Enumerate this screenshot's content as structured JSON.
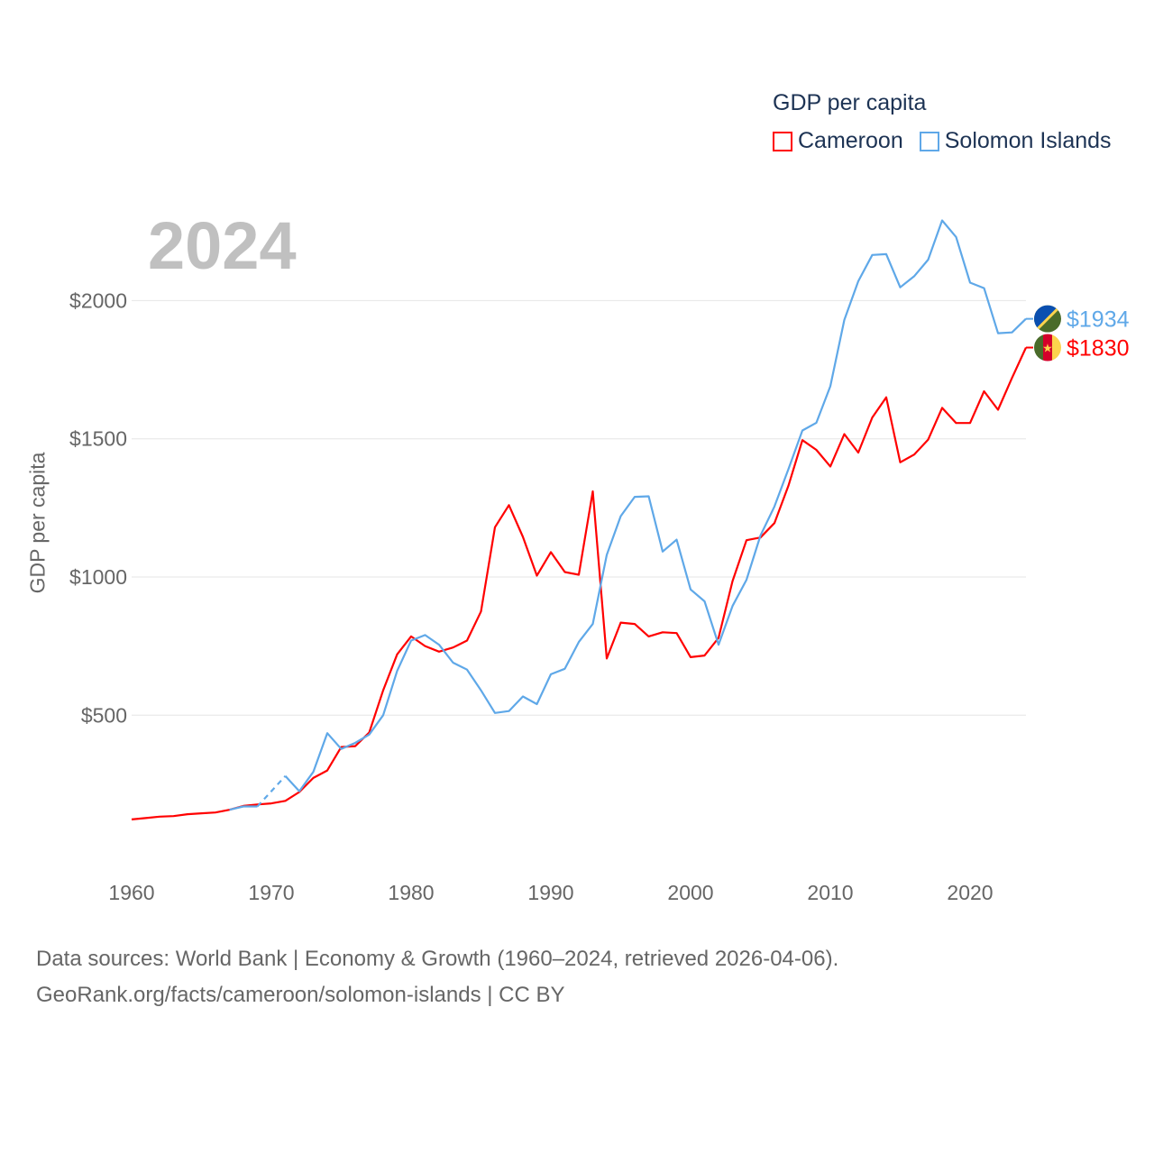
{
  "chart_data": {
    "type": "line",
    "title": "GDP per capita",
    "current_year_label": "2024",
    "xlabel": "",
    "ylabel": "GDP per capita",
    "xlim": [
      1960,
      2024
    ],
    "ylim": [
      0,
      2400
    ],
    "x_ticks": [
      1960,
      1970,
      1980,
      1990,
      2000,
      2010,
      2020
    ],
    "y_ticks": [
      500,
      1000,
      1500,
      2000
    ],
    "y_tick_labels": [
      "$500",
      "$1000",
      "$1500",
      "$2000"
    ],
    "grid": true,
    "legend_position": "top-right",
    "series": [
      {
        "name": "Cameroon",
        "color": "#ff0000",
        "end_label": "$1830",
        "flag": "cameroon-flag",
        "start_year": 1960,
        "values": [
          123,
          128,
          133,
          135,
          142,
          145,
          148,
          158,
          172,
          177,
          181,
          190,
          222,
          273,
          300,
          385,
          388,
          437,
          590,
          720,
          785,
          750,
          730,
          745,
          770,
          875,
          1180,
          1260,
          1145,
          1005,
          1090,
          1018,
          1008,
          1310,
          705,
          835,
          830,
          785,
          800,
          797,
          710,
          716,
          780,
          985,
          1133,
          1143,
          1195,
          1330,
          1495,
          1460,
          1400,
          1517,
          1450,
          1577,
          1650,
          1415,
          1443,
          1497,
          1612,
          1557,
          1557,
          1672,
          1605,
          1720,
          1830
        ]
      },
      {
        "name": "Solomon Islands",
        "color": "#5fa8e8",
        "end_label": "$1934",
        "flag": "solomon-islands-flag",
        "start_year": 1967,
        "values": [
          158,
          170,
          170,
          null,
          280,
          225,
          295,
          435,
          378,
          400,
          430,
          500,
          660,
          770,
          790,
          755,
          690,
          665,
          590,
          508,
          515,
          568,
          540,
          648,
          668,
          765,
          830,
          1080,
          1220,
          1290,
          1292,
          1092,
          1135,
          955,
          912,
          755,
          895,
          990,
          1150,
          1255,
          1390,
          1530,
          1558,
          1690,
          1930,
          2070,
          2165,
          2168,
          2048,
          2088,
          2148,
          2290,
          2230,
          2065,
          2045,
          1882,
          1885,
          1934
        ]
      }
    ]
  },
  "footer": {
    "line1": "Data sources: World Bank | Economy & Growth (1960–2024, retrieved 2026-04-06).",
    "line2": "GeoRank.org/facts/cameroon/solomon-islands | CC BY"
  }
}
